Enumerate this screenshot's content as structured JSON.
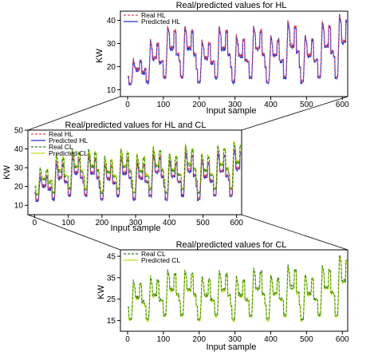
{
  "chart_data": [
    {
      "type": "line",
      "title": "Real/predicted values for HL",
      "xlabel": "Input sample",
      "ylabel": "KW",
      "xlim": [
        -20,
        615
      ],
      "ylim": [
        7,
        44
      ],
      "xticks": [
        0,
        100,
        200,
        300,
        400,
        500,
        600
      ],
      "yticks": [
        10,
        20,
        30,
        40
      ],
      "legend_position": "top-left",
      "cycles": [
        {
          "start": 0,
          "base": 12,
          "peak": 23
        },
        {
          "start": 48,
          "base": 13,
          "peak": 31
        },
        {
          "start": 96,
          "base": 15,
          "peak": 37
        },
        {
          "start": 144,
          "base": 15,
          "peak": 37
        },
        {
          "start": 192,
          "base": 13,
          "peak": 31
        },
        {
          "start": 240,
          "base": 15,
          "peak": 37
        },
        {
          "start": 288,
          "base": 13,
          "peak": 33
        },
        {
          "start": 336,
          "base": 15,
          "peak": 37
        },
        {
          "start": 384,
          "base": 13,
          "peak": 33
        },
        {
          "start": 432,
          "base": 15,
          "peak": 39
        },
        {
          "start": 480,
          "base": 13,
          "peak": 33
        },
        {
          "start": 528,
          "base": 15,
          "peak": 39
        },
        {
          "start": 576,
          "base": 15,
          "peak": 42
        }
      ],
      "series": [
        {
          "name": "Real HL",
          "color": "#e0445a",
          "style": "dashed"
        },
        {
          "name": "Predicted HL",
          "color": "#2433d6",
          "style": "solid"
        }
      ]
    },
    {
      "type": "line",
      "title": "Real/predicted values for HL and CL",
      "xlabel": "Input sample",
      "ylabel": "KW",
      "xlim": [
        -20,
        615
      ],
      "ylim": [
        5,
        50
      ],
      "xticks": [
        0,
        100,
        200,
        300,
        400,
        500,
        600
      ],
      "yticks": [
        10,
        20,
        30,
        40,
        50
      ],
      "legend_position": "top-left",
      "cycles": [
        {
          "start": 0,
          "base": 12,
          "peak": 26
        },
        {
          "start": 48,
          "base": 13,
          "peak": 33
        },
        {
          "start": 96,
          "base": 15,
          "peak": 36
        },
        {
          "start": 144,
          "base": 15,
          "peak": 36
        },
        {
          "start": 192,
          "base": 13,
          "peak": 32
        },
        {
          "start": 240,
          "base": 15,
          "peak": 36
        },
        {
          "start": 288,
          "base": 13,
          "peak": 33
        },
        {
          "start": 336,
          "base": 15,
          "peak": 37
        },
        {
          "start": 384,
          "base": 13,
          "peak": 34
        },
        {
          "start": 432,
          "base": 15,
          "peak": 38
        },
        {
          "start": 480,
          "base": 13,
          "peak": 34
        },
        {
          "start": 528,
          "base": 15,
          "peak": 38
        },
        {
          "start": 576,
          "base": 15,
          "peak": 40
        }
      ],
      "series": [
        {
          "name": "Real HL",
          "color": "#e0445a",
          "style": "dashed"
        },
        {
          "name": "Predicted HL",
          "color": "#2433d6",
          "style": "solid"
        },
        {
          "name": "Real CL",
          "color": "#2f7d20",
          "style": "dashed"
        },
        {
          "name": "Predicted CL",
          "color": "#b8df1a",
          "style": "solid"
        }
      ]
    },
    {
      "type": "line",
      "title": "Real/predicted values for CL",
      "xlabel": "Input sample",
      "ylabel": "KW",
      "xlim": [
        -20,
        615
      ],
      "ylim": [
        10,
        48
      ],
      "xticks": [
        0,
        100,
        200,
        300,
        400,
        500,
        600
      ],
      "yticks": [
        15,
        25,
        35,
        45
      ],
      "legend_position": "top-left",
      "cycles": [
        {
          "start": 0,
          "base": 15,
          "peak": 33
        },
        {
          "start": 48,
          "base": 15,
          "peak": 35
        },
        {
          "start": 96,
          "base": 17,
          "peak": 38
        },
        {
          "start": 144,
          "base": 17,
          "peak": 38
        },
        {
          "start": 192,
          "base": 15,
          "peak": 35
        },
        {
          "start": 240,
          "base": 17,
          "peak": 38
        },
        {
          "start": 288,
          "base": 15,
          "peak": 35
        },
        {
          "start": 336,
          "base": 17,
          "peak": 39
        },
        {
          "start": 384,
          "base": 15,
          "peak": 36
        },
        {
          "start": 432,
          "base": 17,
          "peak": 40
        },
        {
          "start": 480,
          "base": 15,
          "peak": 36
        },
        {
          "start": 528,
          "base": 17,
          "peak": 40
        },
        {
          "start": 576,
          "base": 17,
          "peak": 45
        }
      ],
      "series": [
        {
          "name": "Real CL",
          "color": "#2f7d20",
          "style": "dashed"
        },
        {
          "name": "Predicted CL",
          "color": "#b8df1a",
          "style": "solid"
        }
      ]
    }
  ]
}
